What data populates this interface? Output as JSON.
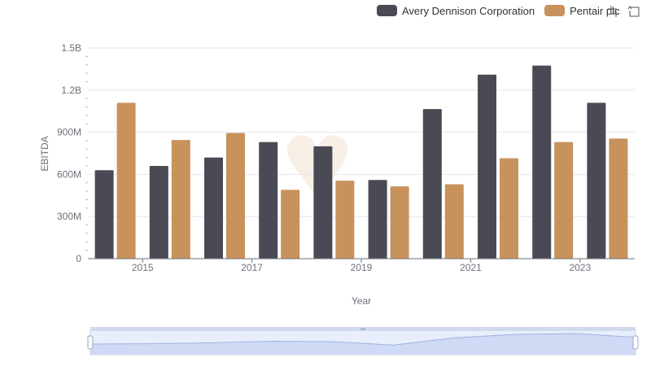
{
  "chart_data": {
    "type": "bar",
    "categories": [
      "2014",
      "2015",
      "2016",
      "2017",
      "2018",
      "2019",
      "2020",
      "2021",
      "2022",
      "2023"
    ],
    "x_tick_labels": [
      "2015",
      "2017",
      "2019",
      "2021",
      "2023"
    ],
    "series": [
      {
        "name": "Avery Dennison Corporation",
        "color": "#4a4a55",
        "values": [
          630000000,
          660000000,
          720000000,
          830000000,
          800000000,
          560000000,
          1065000000,
          1310000000,
          1375000000,
          1110000000
        ]
      },
      {
        "name": "Pentair plc",
        "color": "#c8925c",
        "values": [
          1110000000,
          845000000,
          895000000,
          490000000,
          555000000,
          515000000,
          530000000,
          715000000,
          830000000,
          855000000
        ]
      }
    ],
    "xlabel": "Year",
    "ylabel": "EBITDA",
    "ylim": [
      0,
      1500000000
    ],
    "y_ticks": [
      0,
      300000000,
      600000000,
      900000000,
      1200000000,
      1500000000
    ],
    "y_tick_labels": [
      "0",
      "300M",
      "600M",
      "900M",
      "1.2B",
      "1.5B"
    ],
    "grid": true,
    "legend_position": "top-right"
  },
  "toolbox": {
    "zoom_icon": "zoom-crosshair-icon",
    "restore_icon": "restore-arrow-icon"
  },
  "colors": {
    "grid": "#e6e6ef",
    "axis": "#6e7079",
    "slider": "#d2dbee"
  }
}
